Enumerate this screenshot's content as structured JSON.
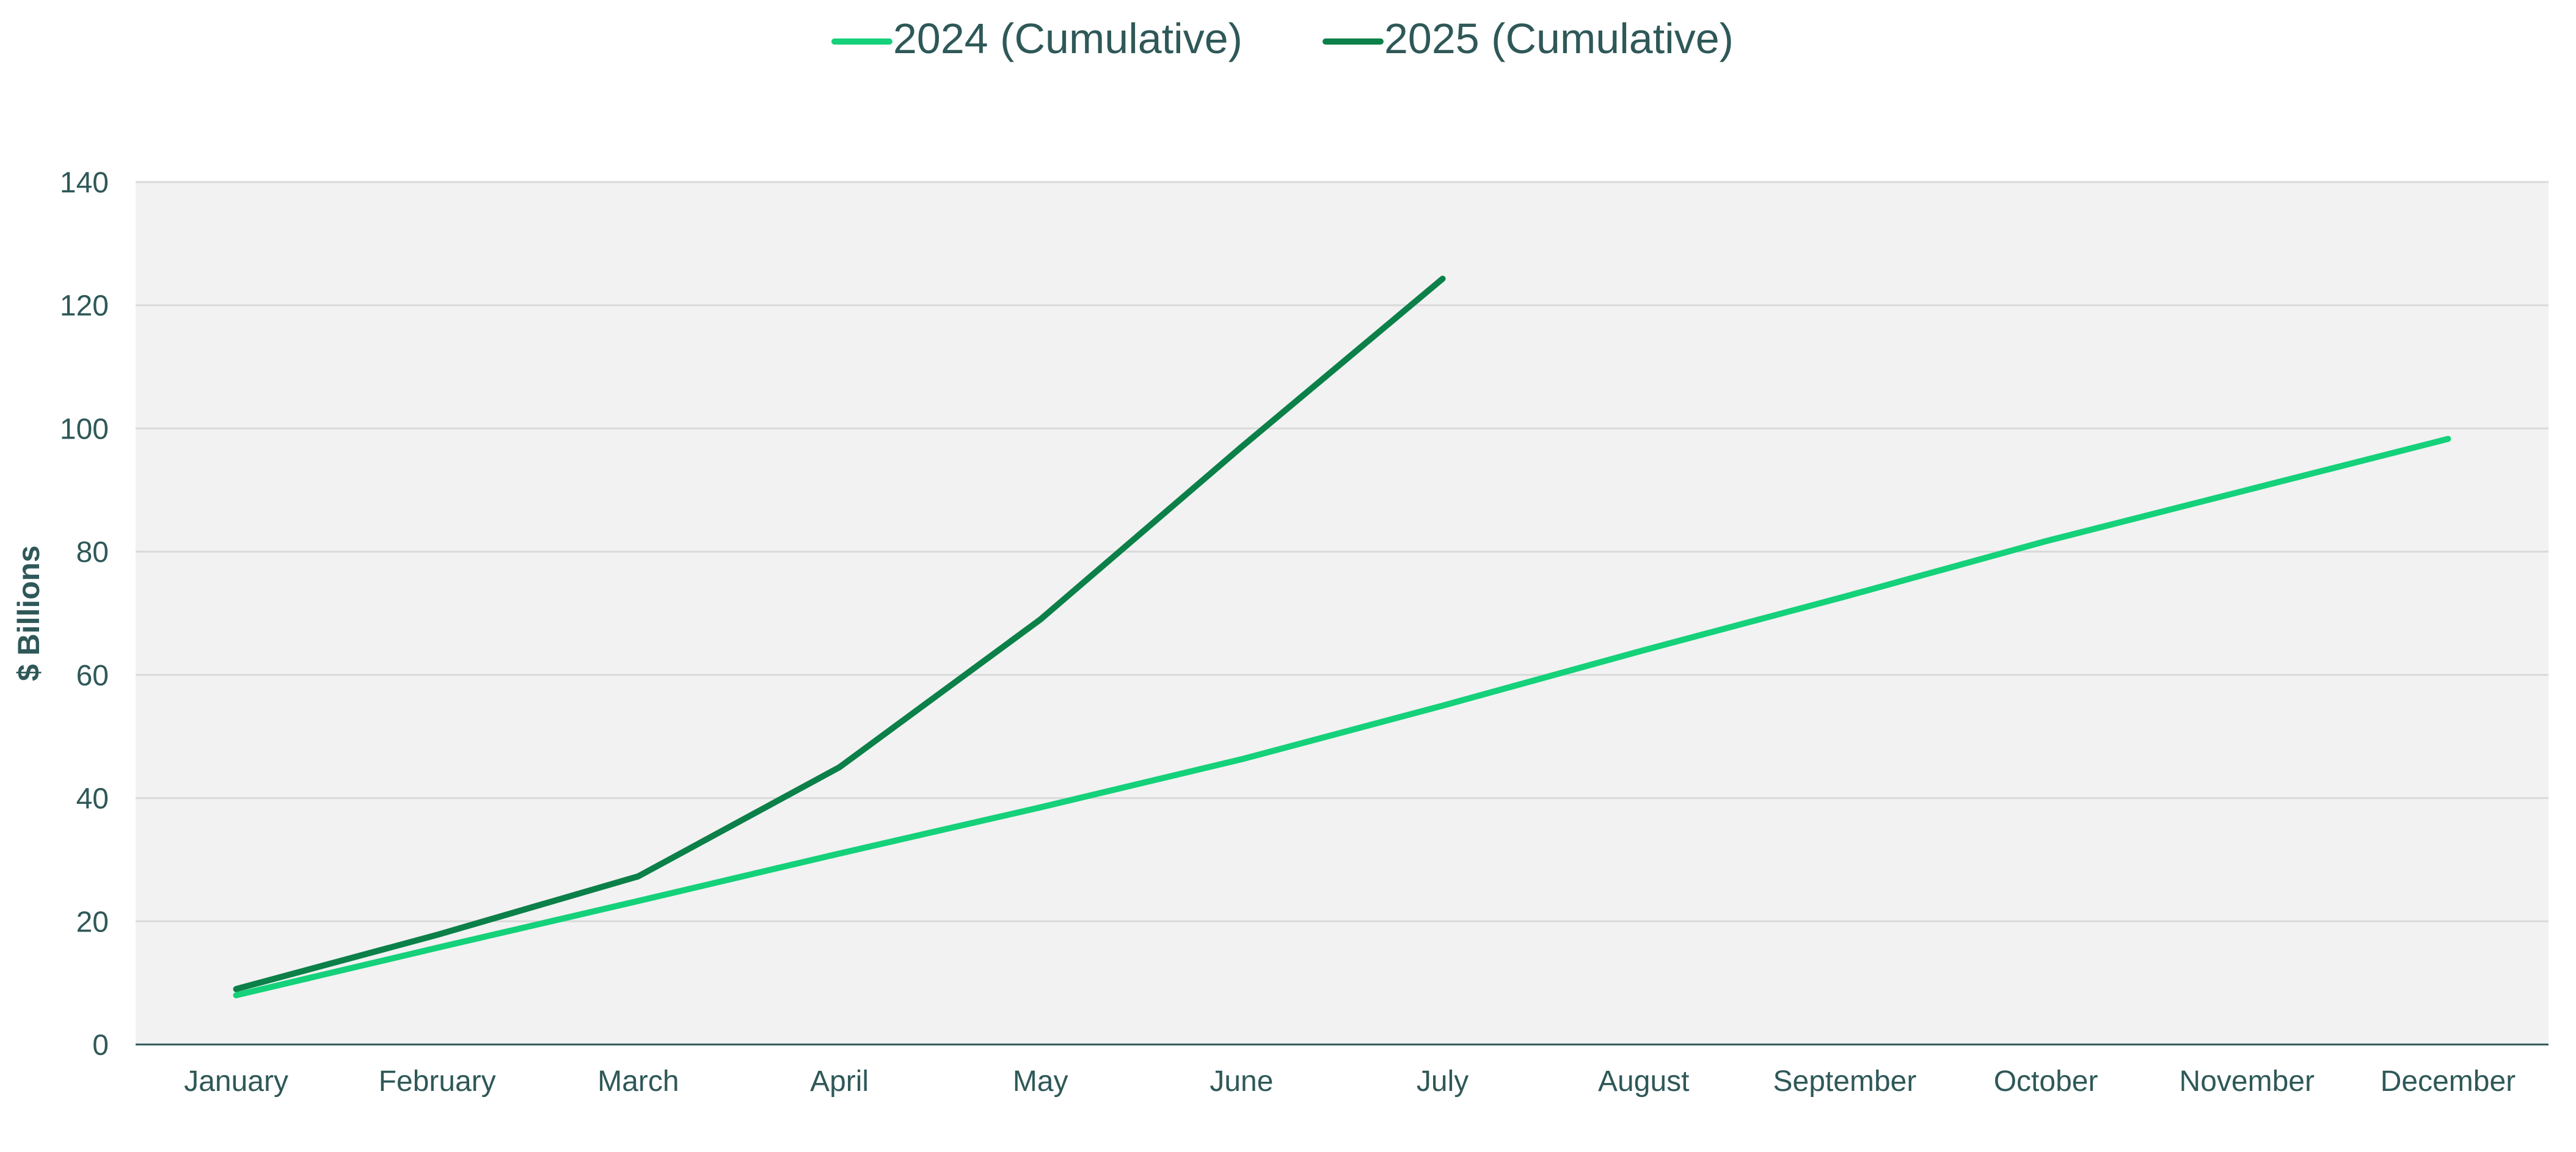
{
  "chart_data": {
    "type": "line",
    "title": "",
    "xlabel": "",
    "ylabel": "$ Billions",
    "categories": [
      "January",
      "February",
      "March",
      "April",
      "May",
      "June",
      "July",
      "August",
      "September",
      "October",
      "November",
      "December"
    ],
    "ylim": [
      0,
      140
    ],
    "yticks": [
      0,
      20,
      40,
      60,
      80,
      100,
      120,
      140
    ],
    "grid": true,
    "legend_position": "top-center",
    "series": [
      {
        "name": "2024 (Cumulative)",
        "color": "#14d17a",
        "values": [
          8,
          15.7,
          23.3,
          31,
          38.5,
          46.3,
          55,
          64,
          72.7,
          81.7,
          90,
          98.3
        ]
      },
      {
        "name": "2025 (Cumulative)",
        "color": "#0b8048",
        "values": [
          9,
          17.8,
          27.3,
          45,
          69,
          97,
          124.3,
          null,
          null,
          null,
          null,
          null
        ]
      }
    ]
  },
  "colors": {
    "plot_background": "#f2f2f2",
    "gridline": "#d9d9d9",
    "axis_line": "#2f5858",
    "text": "#2f5858"
  }
}
